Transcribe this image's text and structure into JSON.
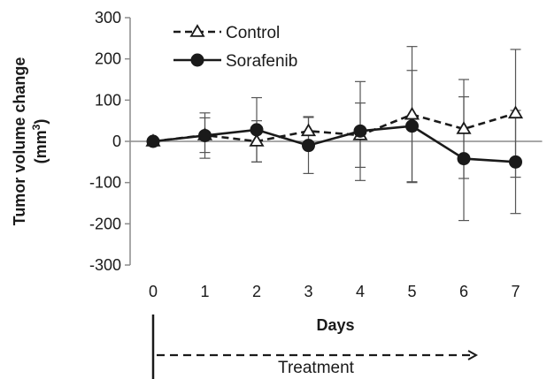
{
  "chart_data": {
    "type": "line",
    "x": [
      0,
      1,
      2,
      3,
      4,
      5,
      6,
      7
    ],
    "xlabel": "Days",
    "ylabel_line1": "Tumor volume change",
    "ylabel_line2": "(mm",
    "ylabel_sup": "3",
    "ylabel_close": ")",
    "ylim": [
      -300,
      300
    ],
    "yticks": [
      300,
      200,
      100,
      0,
      -100,
      -200,
      -300
    ],
    "xticks": [
      0,
      1,
      2,
      3,
      4,
      5,
      6,
      7
    ],
    "legend_position": "top-left",
    "grid": false,
    "series": [
      {
        "name": "Control",
        "marker": "open-triangle",
        "line_style": "dashed",
        "color": "#1a1a1a",
        "values": [
          0,
          15,
          0,
          25,
          15,
          65,
          30,
          68
        ],
        "error": [
          0,
          42,
          50,
          35,
          78,
          165,
          120,
          155
        ]
      },
      {
        "name": "Sorafenib",
        "marker": "filled-circle",
        "line_style": "solid",
        "color": "#1a1a1a",
        "values": [
          0,
          14,
          28,
          -10,
          25,
          37,
          -42,
          -50
        ],
        "error": [
          0,
          55,
          78,
          68,
          120,
          135,
          150,
          125
        ]
      }
    ],
    "treatment": {
      "label": "Treatment",
      "from_day": 0,
      "to_day": 7
    }
  }
}
